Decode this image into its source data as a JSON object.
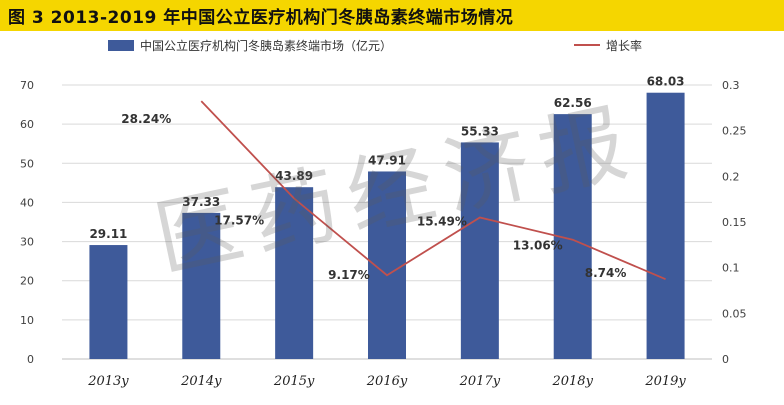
{
  "header": {
    "title": "图 3   2013-2019 年中国公立医疗机构门冬胰岛素终端市场情况"
  },
  "watermark_text": "医药经济报",
  "colors": {
    "bar": "#3e5a9a",
    "line": "#c0504d",
    "title_bg": "#f5d600",
    "axis_text": "#404040"
  },
  "chart_data": {
    "type": "bar",
    "categories": [
      "2013y",
      "2014y",
      "2015y",
      "2016y",
      "2017y",
      "2018y",
      "2019y"
    ],
    "series": [
      {
        "name": "中国公立医疗机构门冬胰岛素终端市场（亿元）",
        "type": "bar",
        "axis": "left",
        "values": [
          29.11,
          37.33,
          43.89,
          47.91,
          55.33,
          62.56,
          68.03
        ],
        "labels": [
          "29.11",
          "37.33",
          "43.89",
          "47.91",
          "55.33",
          "62.56",
          "68.03"
        ]
      },
      {
        "name": "增长率",
        "type": "line",
        "axis": "right",
        "values": [
          null,
          0.2824,
          0.1757,
          0.0917,
          0.1549,
          0.1306,
          0.0874
        ],
        "labels": [
          "",
          "28.24%",
          "17.57%",
          "9.17%",
          "15.49%",
          "13.06%",
          "8.74%"
        ]
      }
    ],
    "y_left": {
      "range": [
        0,
        70
      ],
      "ticks": [
        "0",
        "10",
        "20",
        "30",
        "40",
        "50",
        "60",
        "70"
      ]
    },
    "y_right": {
      "range": [
        0,
        0.3
      ],
      "ticks": [
        "0",
        "0.05",
        "0.1",
        "0.15",
        "0.2",
        "0.25",
        "0.3"
      ]
    },
    "grid": true,
    "legend_position": "top"
  }
}
